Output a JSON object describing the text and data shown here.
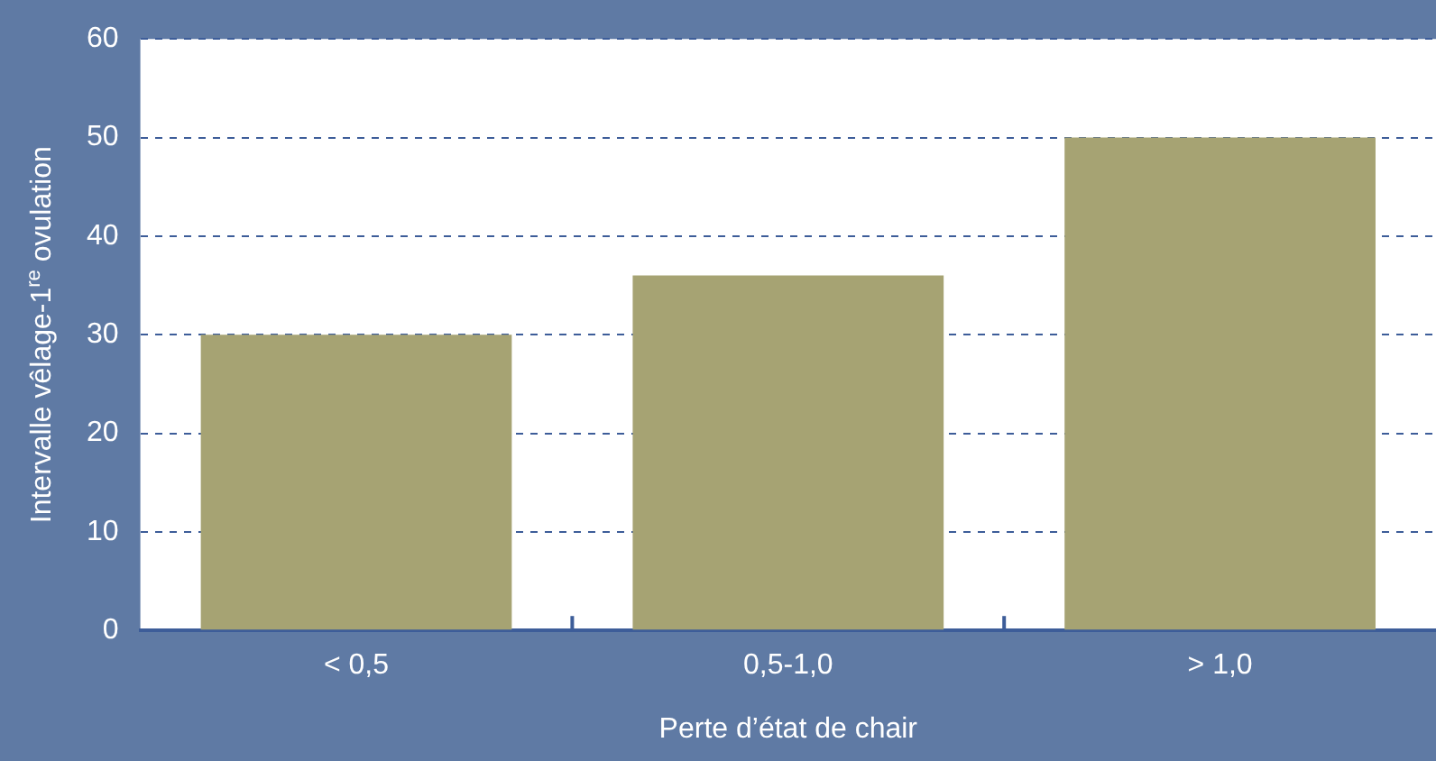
{
  "chart_data": {
    "type": "bar",
    "xlabel": "Perte d’état de chair",
    "ylabel": "Intervalle vêlage-1$^{re}$ ovulation",
    "categories": [
      "< 0,5",
      "0,5-1,0",
      "> 1,0"
    ],
    "values": [
      30,
      36,
      50
    ],
    "color": "#a6a373",
    "ylim": [
      0,
      60
    ],
    "yticks": [
      0,
      10,
      20,
      30,
      40,
      50,
      60
    ],
    "grid": "y",
    "legend": false
  }
}
